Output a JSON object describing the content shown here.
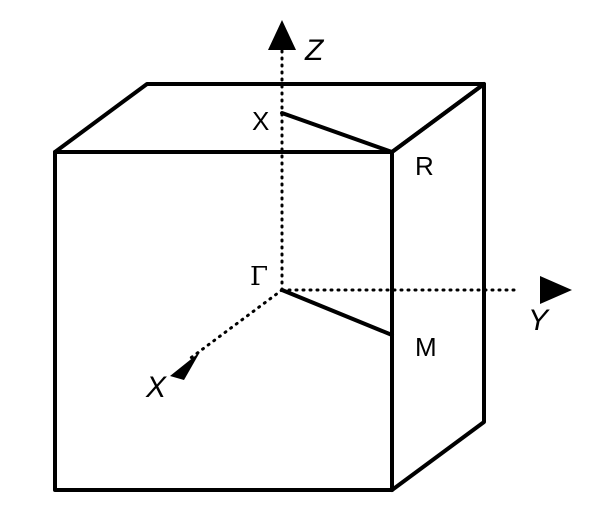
{
  "axes": {
    "z_label": "Z",
    "y_label": "Y",
    "x_label": "X"
  },
  "points": {
    "gamma": "Γ",
    "x": "X",
    "r": "R",
    "m": "M"
  },
  "colors": {
    "line": "#000000",
    "background": "#ffffff"
  }
}
